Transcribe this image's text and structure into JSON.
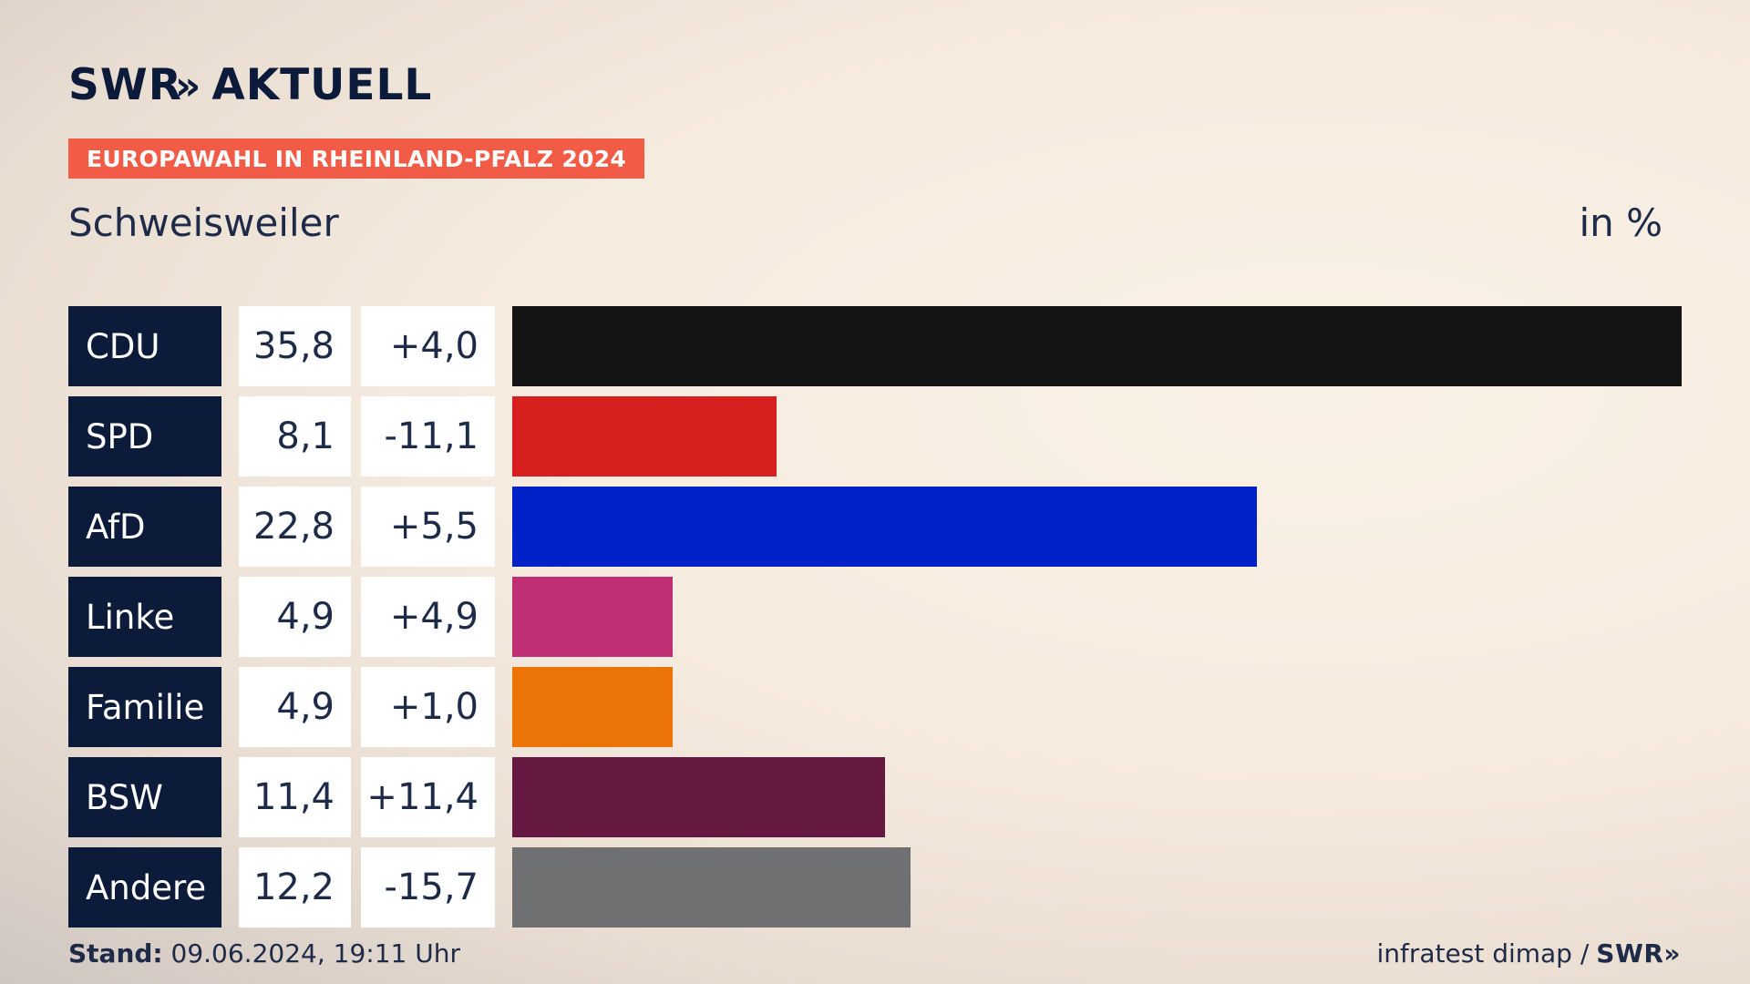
{
  "header": {
    "logo_brand": "SWR",
    "logo_chevrons": "»",
    "logo_text": "AKTUELL",
    "tag": "EUROPAWAHL IN RHEINLAND-PFALZ 2024",
    "location": "Schweisweiler",
    "unit": "in %"
  },
  "chart_data": {
    "type": "bar",
    "title": "Europawahl in Rheinland-Pfalz 2024 – Schweisweiler",
    "ylabel": "in %",
    "xlim": [
      0,
      35.8
    ],
    "categories": [
      "CDU",
      "SPD",
      "AfD",
      "Linke",
      "Familie",
      "BSW",
      "Andere"
    ],
    "values": [
      35.8,
      8.1,
      22.8,
      4.9,
      4.9,
      11.4,
      12.2
    ],
    "value_labels": [
      "35,8",
      "8,1",
      "22,8",
      "4,9",
      "4,9",
      "11,4",
      "12,2"
    ],
    "changes": [
      "+4,0",
      "-11,1",
      "+5,5",
      "+4,9",
      "+1,0",
      "+11,4",
      "-15,7"
    ],
    "colors": [
      "#141414",
      "#d71f1f",
      "#0021c8",
      "#bf2f73",
      "#ec7306",
      "#661940",
      "#6f7072"
    ]
  },
  "footer": {
    "stand_label": "Stand:",
    "stand_value": " 09.06.2024, 19:11 Uhr",
    "source": "infratest dimap /",
    "source_brand": "SWR»"
  }
}
